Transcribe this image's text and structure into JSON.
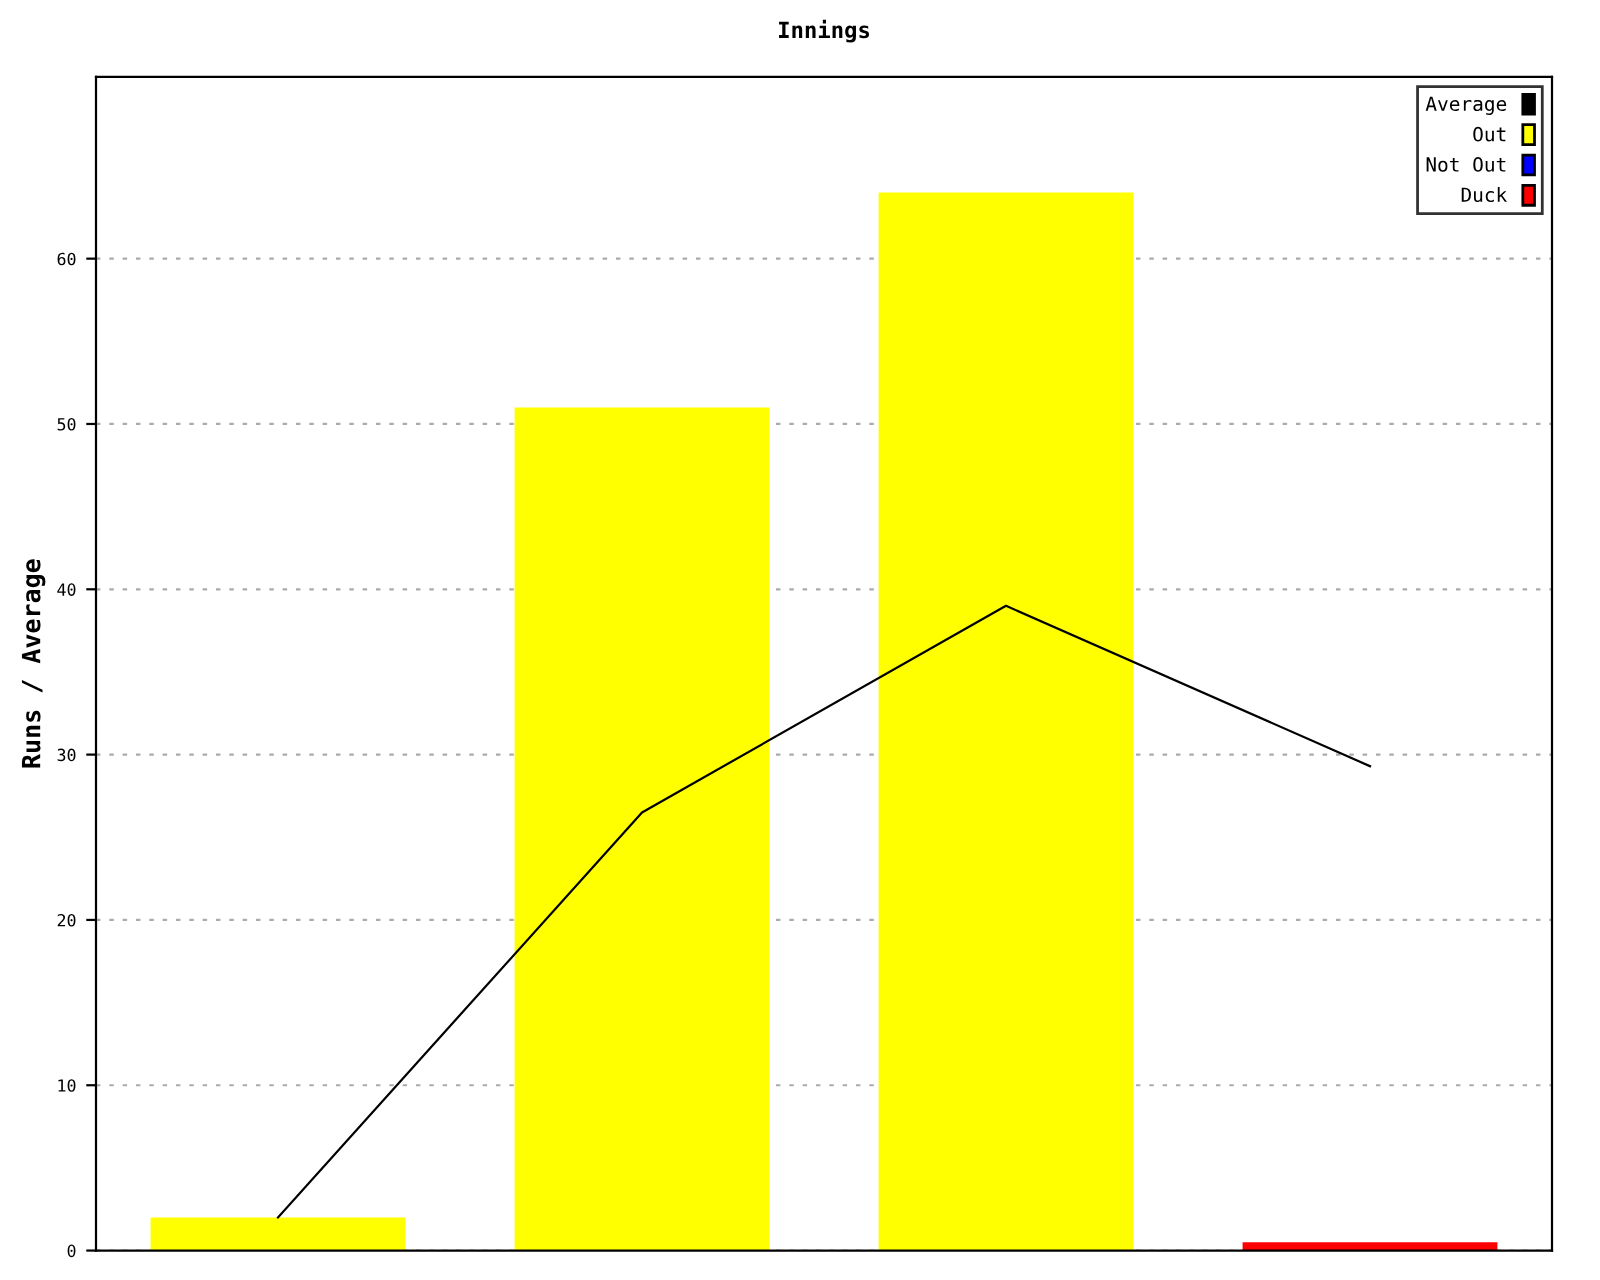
{
  "chart_data": {
    "type": "bar",
    "title": "Innings",
    "ylabel": "Runs / Average",
    "categories": [
      null,
      null,
      null,
      null
    ],
    "series": [
      {
        "name": "Average",
        "type": "line",
        "color": "#000000",
        "values": [
          2,
          26.5,
          39,
          29.3
        ]
      },
      {
        "name": "Out",
        "color": "#ffff00",
        "values": [
          2,
          51,
          64,
          null
        ]
      },
      {
        "name": "Not Out",
        "color": "#0000ff",
        "values": [
          null,
          null,
          null,
          null
        ]
      },
      {
        "name": "Duck",
        "color": "#ff0000",
        "values": [
          null,
          null,
          null,
          0.5
        ]
      }
    ],
    "ylim": [
      0,
      71
    ],
    "yticks": [
      0,
      10,
      20,
      30,
      40,
      50,
      60
    ],
    "grid": "y",
    "legend": "top right",
    "marker": "none",
    "line_style": "solid"
  }
}
